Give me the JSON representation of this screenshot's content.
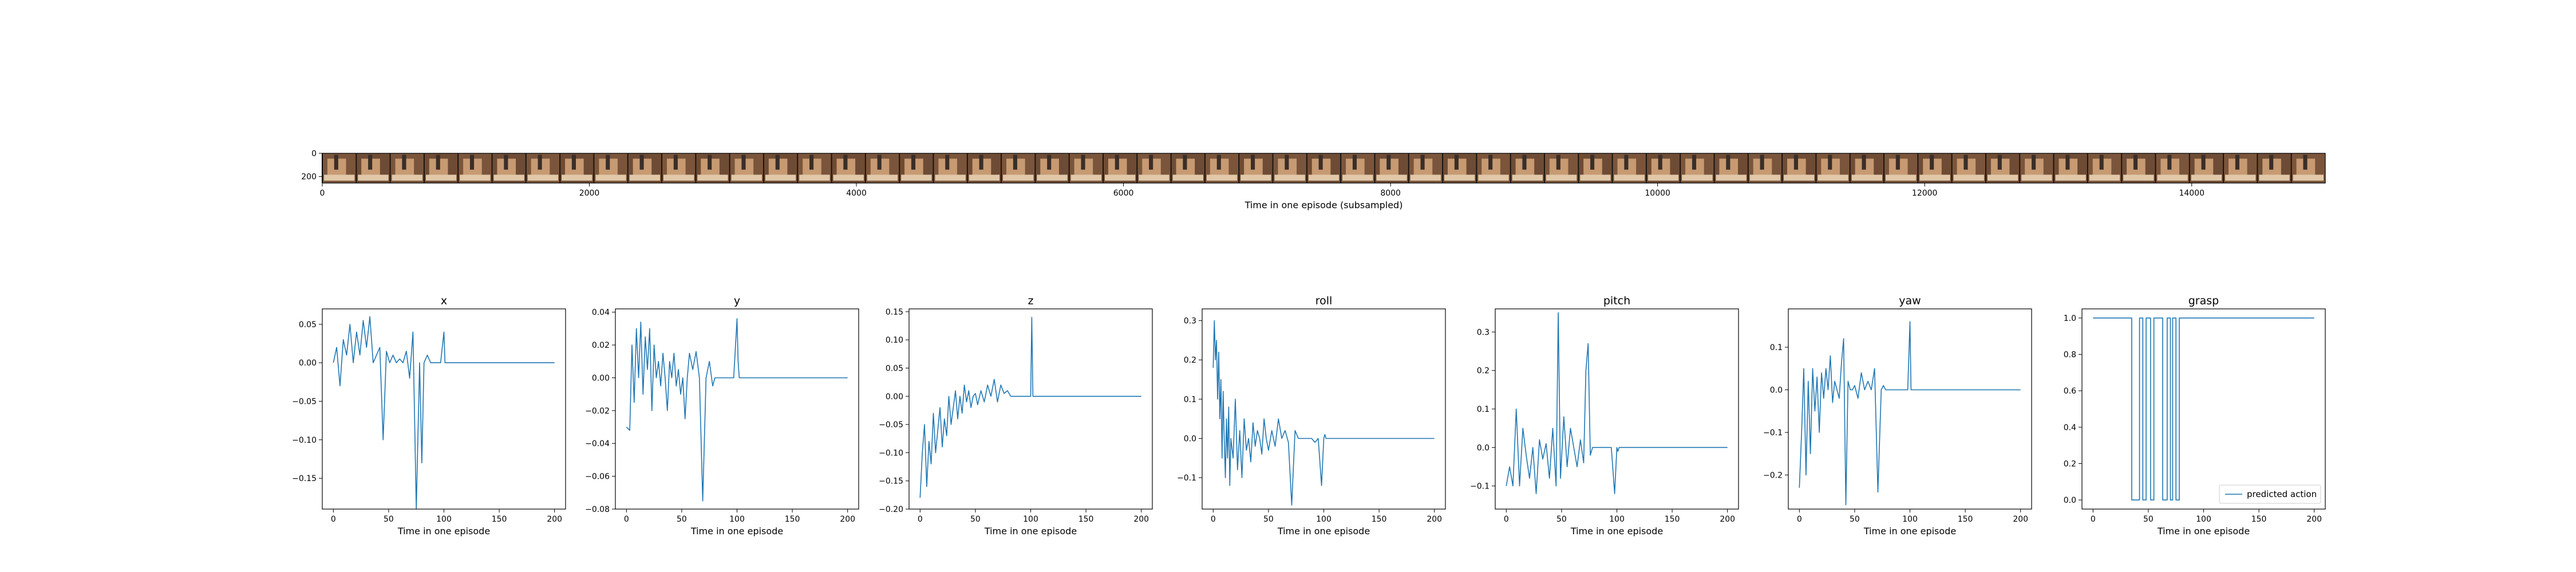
{
  "chart_data": [
    {
      "type": "image",
      "xlabel": "Time in one episode (subsampled)",
      "xlim": [
        0,
        15000
      ],
      "ylim": [
        0,
        256
      ],
      "xticks": [
        0,
        2000,
        4000,
        6000,
        8000,
        10000,
        12000,
        14000
      ],
      "yticks": [
        0,
        200
      ],
      "frame_count": 59,
      "frame_width": 256
    },
    {
      "type": "line",
      "title": "x",
      "xlabel": "Time in one episode",
      "xlim": [
        -10,
        210
      ],
      "ylim": [
        -0.19,
        0.07
      ],
      "xticks": [
        0,
        50,
        100,
        150,
        200
      ],
      "yticks": [
        0.05,
        0.0,
        -0.05,
        -0.1,
        -0.15
      ],
      "ytick_labels": [
        "0.05",
        "0.00",
        "−0.05",
        "−0.10",
        "−0.15"
      ],
      "x": [
        0,
        3,
        6,
        9,
        12,
        15,
        18,
        21,
        24,
        27,
        30,
        33,
        36,
        39,
        42,
        45,
        48,
        51,
        54,
        57,
        60,
        63,
        66,
        69,
        72,
        75,
        78,
        80,
        82,
        85,
        88,
        91,
        94,
        97,
        100,
        101,
        102,
        104,
        110,
        130,
        150,
        170,
        200
      ],
      "y": [
        0.0,
        0.02,
        -0.03,
        0.03,
        0.01,
        0.05,
        0.0,
        0.04,
        0.01,
        0.055,
        0.02,
        0.06,
        0.0,
        0.01,
        0.02,
        -0.1,
        0.015,
        0.0,
        0.01,
        0.0,
        0.005,
        0.0,
        0.015,
        -0.02,
        0.04,
        -0.19,
        0.0,
        -0.13,
        0.0,
        0.01,
        0.0,
        0.0,
        0.0,
        0.0,
        0.04,
        0.0,
        0.0,
        0.0,
        0.0,
        0.0,
        0.0,
        0.0,
        0.0
      ]
    },
    {
      "type": "line",
      "title": "y",
      "xlabel": "Time in one episode",
      "xlim": [
        -10,
        210
      ],
      "ylim": [
        -0.08,
        0.042
      ],
      "xticks": [
        0,
        50,
        100,
        150,
        200
      ],
      "yticks": [
        0.04,
        0.02,
        0.0,
        -0.02,
        -0.04,
        -0.06,
        -0.08
      ],
      "ytick_labels": [
        "0.04",
        "0.02",
        "0.00",
        "−0.02",
        "−0.04",
        "−0.06",
        "−0.08"
      ],
      "x": [
        0,
        3,
        5,
        7,
        9,
        11,
        13,
        15,
        17,
        19,
        21,
        23,
        25,
        27,
        29,
        31,
        33,
        35,
        37,
        39,
        41,
        43,
        45,
        47,
        49,
        51,
        53,
        55,
        57,
        60,
        63,
        66,
        69,
        72,
        75,
        78,
        80,
        82,
        85,
        88,
        91,
        94,
        97,
        100,
        101,
        102,
        104,
        110,
        130,
        150,
        170,
        200
      ],
      "y": [
        -0.03,
        -0.032,
        0.02,
        -0.015,
        0.03,
        0.0,
        0.034,
        -0.01,
        0.025,
        0.005,
        0.03,
        -0.02,
        0.02,
        0.0,
        0.01,
        -0.005,
        0.015,
        0.0,
        -0.02,
        0.01,
        0.0,
        0.015,
        -0.005,
        0.005,
        -0.01,
        0.0,
        -0.025,
        0.0,
        0.015,
        0.005,
        0.016,
        0.0,
        -0.075,
        0.0,
        0.01,
        -0.005,
        0.0,
        0.0,
        0.0,
        0.0,
        0.0,
        0.0,
        0.0,
        0.036,
        0.01,
        0.0,
        0.0,
        0.0,
        0.0,
        0.0,
        0.0,
        0.0
      ]
    },
    {
      "type": "line",
      "title": "z",
      "xlabel": "Time in one episode",
      "xlim": [
        -10,
        210
      ],
      "ylim": [
        -0.2,
        0.155
      ],
      "xticks": [
        0,
        50,
        100,
        150,
        200
      ],
      "yticks": [
        0.15,
        0.1,
        0.05,
        0.0,
        -0.05,
        -0.1,
        -0.15,
        -0.2
      ],
      "ytick_labels": [
        "0.15",
        "0.10",
        "0.05",
        "0.00",
        "−0.05",
        "−0.10",
        "−0.15",
        "−0.20"
      ],
      "x": [
        0,
        2,
        4,
        6,
        8,
        10,
        12,
        14,
        16,
        18,
        20,
        22,
        24,
        26,
        28,
        30,
        32,
        34,
        36,
        38,
        40,
        42,
        44,
        46,
        48,
        50,
        52,
        55,
        58,
        61,
        64,
        67,
        70,
        73,
        76,
        79,
        82,
        85,
        88,
        91,
        94,
        97,
        100,
        101,
        102,
        104,
        110,
        130,
        150,
        170,
        200
      ],
      "y": [
        -0.18,
        -0.1,
        -0.05,
        -0.16,
        -0.08,
        -0.12,
        -0.03,
        -0.1,
        -0.06,
        -0.02,
        -0.09,
        -0.04,
        -0.07,
        0.0,
        -0.05,
        -0.02,
        0.01,
        -0.04,
        0.0,
        -0.03,
        0.02,
        -0.01,
        0.01,
        -0.02,
        0.0,
        0.005,
        -0.015,
        0.01,
        -0.01,
        0.02,
        0.0,
        0.03,
        -0.01,
        0.02,
        0.005,
        0.01,
        0.0,
        0.0,
        0.0,
        0.0,
        0.0,
        0.0,
        0.0,
        0.14,
        0.0,
        0.0,
        0.0,
        0.0,
        0.0,
        0.0,
        0.0
      ]
    },
    {
      "type": "line",
      "title": "roll",
      "xlabel": "Time in one episode",
      "xlim": [
        -10,
        210
      ],
      "ylim": [
        -0.18,
        0.33
      ],
      "xticks": [
        0,
        50,
        100,
        150,
        200
      ],
      "yticks": [
        0.3,
        0.2,
        0.1,
        0.0,
        -0.1
      ],
      "ytick_labels": [
        "0.3",
        "0.2",
        "0.1",
        "0.0",
        "−0.1"
      ],
      "x": [
        0,
        1,
        2,
        3,
        4,
        5,
        6,
        7,
        8,
        9,
        10,
        11,
        12,
        13,
        14,
        15,
        16,
        18,
        20,
        22,
        24,
        26,
        28,
        30,
        32,
        34,
        36,
        38,
        40,
        42,
        44,
        46,
        48,
        50,
        53,
        56,
        59,
        62,
        65,
        68,
        71,
        74,
        77,
        80,
        83,
        86,
        89,
        92,
        95,
        98,
        100,
        101,
        102,
        104,
        110,
        130,
        150,
        170,
        200
      ],
      "y": [
        0.18,
        0.3,
        0.2,
        0.25,
        0.1,
        0.22,
        0.05,
        0.15,
        -0.05,
        0.12,
        0.0,
        -0.1,
        0.05,
        -0.05,
        0.08,
        -0.12,
        0.0,
        -0.05,
        0.1,
        -0.08,
        0.02,
        -0.1,
        0.05,
        -0.03,
        0.0,
        -0.06,
        0.04,
        -0.02,
        0.02,
        0.0,
        -0.04,
        0.05,
        0.0,
        -0.03,
        0.02,
        -0.02,
        0.05,
        0.0,
        0.02,
        -0.01,
        -0.17,
        0.02,
        0.0,
        0.0,
        0.0,
        0.0,
        0.0,
        -0.01,
        0.0,
        -0.12,
        0.0,
        0.01,
        0.0,
        0.0,
        0.0,
        0.0,
        0.0,
        0.0,
        0.0
      ]
    },
    {
      "type": "line",
      "title": "pitch",
      "xlabel": "Time in one episode",
      "xlim": [
        -10,
        210
      ],
      "ylim": [
        -0.16,
        0.36
      ],
      "xticks": [
        0,
        50,
        100,
        150,
        200
      ],
      "yticks": [
        0.3,
        0.2,
        0.1,
        0.0,
        -0.1
      ],
      "ytick_labels": [
        "0.3",
        "0.2",
        "0.1",
        "0.0",
        "−0.1"
      ],
      "x": [
        0,
        3,
        6,
        9,
        12,
        15,
        18,
        21,
        24,
        27,
        30,
        33,
        36,
        39,
        42,
        45,
        47,
        49,
        52,
        55,
        58,
        61,
        64,
        67,
        70,
        72,
        74,
        76,
        78,
        80,
        83,
        86,
        89,
        92,
        95,
        98,
        100,
        101,
        102,
        104,
        110,
        130,
        150,
        170,
        200
      ],
      "y": [
        -0.1,
        -0.05,
        -0.1,
        0.1,
        -0.1,
        0.05,
        -0.02,
        -0.08,
        0.0,
        -0.12,
        0.02,
        -0.03,
        0.01,
        -0.08,
        0.05,
        -0.1,
        0.35,
        -0.08,
        0.08,
        -0.05,
        0.05,
        0.0,
        -0.05,
        0.02,
        -0.04,
        0.2,
        0.27,
        -0.02,
        0.0,
        0.0,
        0.0,
        0.0,
        0.0,
        0.0,
        0.0,
        -0.12,
        0.0,
        -0.01,
        0.0,
        0.0,
        0.0,
        0.0,
        0.0,
        0.0,
        0.0
      ]
    },
    {
      "type": "line",
      "title": "yaw",
      "xlabel": "Time in one episode",
      "xlim": [
        -10,
        210
      ],
      "ylim": [
        -0.28,
        0.19
      ],
      "xticks": [
        0,
        50,
        100,
        150,
        200
      ],
      "yticks": [
        0.1,
        0.0,
        -0.1,
        -0.2
      ],
      "ytick_labels": [
        "0.1",
        "0.0",
        "−0.1",
        "−0.2"
      ],
      "x": [
        0,
        2,
        4,
        6,
        8,
        10,
        12,
        14,
        16,
        18,
        20,
        22,
        24,
        26,
        28,
        30,
        32,
        34,
        36,
        38,
        40,
        42,
        44,
        46,
        48,
        50,
        53,
        56,
        59,
        62,
        65,
        68,
        71,
        74,
        76,
        78,
        80,
        83,
        86,
        89,
        92,
        95,
        98,
        100,
        101,
        102,
        104,
        110,
        130,
        150,
        170,
        200
      ],
      "y": [
        -0.23,
        -0.1,
        0.05,
        -0.2,
        0.02,
        -0.15,
        0.05,
        -0.05,
        0.03,
        -0.1,
        0.04,
        -0.02,
        0.05,
        0.0,
        0.08,
        -0.03,
        0.02,
        0.0,
        -0.02,
        0.06,
        0.12,
        -0.27,
        0.02,
        0.0,
        0.0,
        0.01,
        -0.02,
        0.04,
        0.0,
        0.02,
        0.0,
        0.05,
        -0.24,
        0.0,
        0.01,
        0.0,
        0.0,
        0.0,
        0.0,
        0.0,
        0.0,
        0.0,
        0.0,
        0.16,
        0.0,
        0.0,
        0.0,
        0.0,
        0.0,
        0.0,
        0.0,
        0.0
      ]
    },
    {
      "type": "line",
      "title": "grasp",
      "xlabel": "Time in one episode",
      "xlim": [
        -10,
        210
      ],
      "ylim": [
        -0.05,
        1.05
      ],
      "xticks": [
        0,
        50,
        100,
        150,
        200
      ],
      "yticks": [
        1.0,
        0.8,
        0.6,
        0.4,
        0.2,
        0.0
      ],
      "ytick_labels": [
        "1.0",
        "0.8",
        "0.6",
        "0.4",
        "0.2",
        "0.0"
      ],
      "x": [
        0,
        35,
        35,
        42,
        42,
        45,
        45,
        48,
        48,
        52,
        52,
        55,
        55,
        63,
        63,
        67,
        67,
        70,
        70,
        72,
        72,
        75,
        75,
        78,
        78,
        81,
        81,
        200
      ],
      "y": [
        1,
        1,
        0,
        0,
        1,
        1,
        0,
        0,
        1,
        1,
        0,
        0,
        1,
        1,
        0,
        0,
        1,
        1,
        0,
        0,
        1,
        1,
        0,
        0,
        1,
        1,
        1,
        1
      ],
      "legend": [
        "predicted action"
      ],
      "legend_position": "lower-right"
    }
  ],
  "colors": {
    "series": "#1f77b4",
    "axes": "#000000"
  }
}
